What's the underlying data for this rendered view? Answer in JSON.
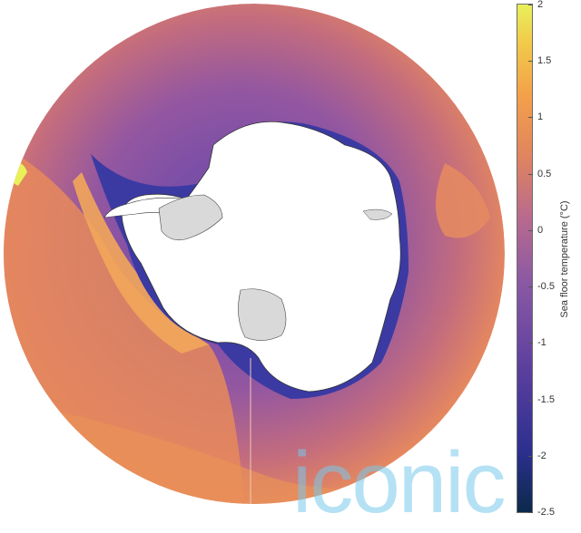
{
  "map": {
    "colors": {
      "ocean_deep_mid": "#8b5ba6",
      "ocean_warm": "#e68a56",
      "ocean_warm_light": "#f0a35a",
      "ocean_cold": "#3a3fa0",
      "ocean_very_cold": "#1f2a78",
      "land": "#ffffff",
      "ice_shelf": "#d9d9d9",
      "coast_line": "#333333"
    }
  },
  "colorbar": {
    "label": "Sea floor temperature (°C)",
    "ticks": [
      "2",
      "1.5",
      "1",
      "0.5",
      "0",
      "-0.5",
      "-1",
      "-1.5",
      "-2",
      "-2.5"
    ],
    "min": -2.5,
    "max": 2,
    "stops": [
      "#0b2a4a",
      "#2c2f8f",
      "#5b3f9e",
      "#8a58a4",
      "#b86a8e",
      "#e0845f",
      "#f3a04a",
      "#f2c84a",
      "#e8f05a"
    ]
  },
  "watermark": {
    "text": "iconic"
  }
}
